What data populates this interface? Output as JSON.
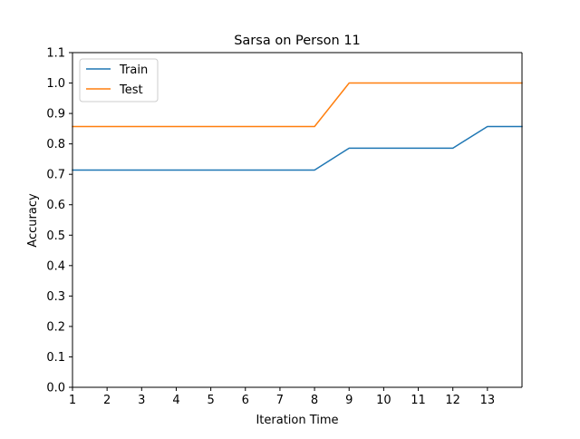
{
  "chart_data": {
    "type": "line",
    "title": "Sarsa on Person 11",
    "xlabel": "Iteration Time",
    "ylabel": "Accuracy",
    "xlim": [
      1,
      14
    ],
    "ylim": [
      0.0,
      1.1
    ],
    "x_ticks": [
      1,
      2,
      3,
      4,
      5,
      6,
      7,
      8,
      9,
      10,
      11,
      12,
      13
    ],
    "x_tick_labels": [
      "1",
      "2",
      "3",
      "4",
      "5",
      "6",
      "7",
      "8",
      "9",
      "10",
      "11",
      "12",
      "13"
    ],
    "y_ticks": [
      0.0,
      0.1,
      0.2,
      0.3,
      0.4,
      0.5,
      0.6,
      0.7,
      0.8,
      0.9,
      1.0,
      1.1
    ],
    "y_tick_labels": [
      "0.0",
      "0.1",
      "0.2",
      "0.3",
      "0.4",
      "0.5",
      "0.6",
      "0.7",
      "0.8",
      "0.9",
      "1.0",
      "1.1"
    ],
    "x": [
      1,
      2,
      3,
      4,
      5,
      6,
      7,
      8,
      9,
      10,
      11,
      12,
      13,
      14
    ],
    "series": [
      {
        "name": "Train",
        "color": "#1f77b4",
        "values": [
          0.714,
          0.714,
          0.714,
          0.714,
          0.714,
          0.714,
          0.714,
          0.714,
          0.786,
          0.786,
          0.786,
          0.786,
          0.857,
          0.857
        ]
      },
      {
        "name": "Test",
        "color": "#ff7f0e",
        "values": [
          0.857,
          0.857,
          0.857,
          0.857,
          0.857,
          0.857,
          0.857,
          0.857,
          1.0,
          1.0,
          1.0,
          1.0,
          1.0,
          1.0
        ]
      }
    ],
    "grid": false,
    "legend_position": "upper-left"
  }
}
